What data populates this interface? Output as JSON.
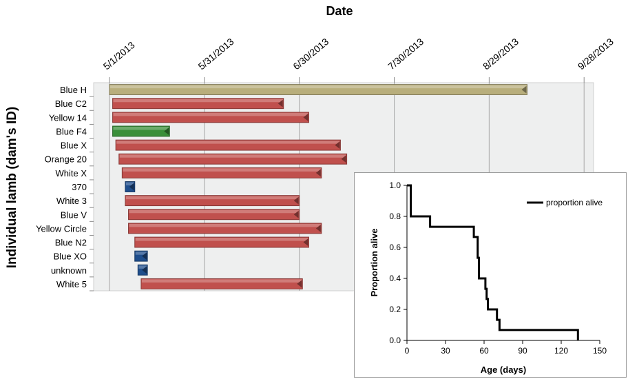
{
  "chart_data": [
    {
      "type": "gantt",
      "title": "Date",
      "ylabel": "Individual lamb  (dam's ID)",
      "x_ticks": [
        "5/1/2013",
        "5/31/2013",
        "6/30/2013",
        "7/30/2013",
        "8/29/2013",
        "9/28/2013"
      ],
      "x_range": [
        "2013-04-26",
        "2013-10-01"
      ],
      "grid": true,
      "rows": [
        {
          "label": "Blue H",
          "start": "2013-05-01",
          "end": "2013-09-10",
          "color": "#b8ae7c"
        },
        {
          "label": "Blue C2",
          "start": "2013-05-02",
          "end": "2013-06-25",
          "color": "#c0504d"
        },
        {
          "label": "Yellow 14",
          "start": "2013-05-02",
          "end": "2013-07-03",
          "color": "#c0504d"
        },
        {
          "label": "Blue F4",
          "start": "2013-05-02",
          "end": "2013-05-20",
          "color": "#3a8f3a"
        },
        {
          "label": "Blue X",
          "start": "2013-05-03",
          "end": "2013-07-13",
          "color": "#c0504d"
        },
        {
          "label": "Orange 20",
          "start": "2013-05-04",
          "end": "2013-07-15",
          "color": "#c0504d"
        },
        {
          "label": "White X",
          "start": "2013-05-05",
          "end": "2013-07-07",
          "color": "#c0504d"
        },
        {
          "label": "370",
          "start": "2013-05-06",
          "end": "2013-05-09",
          "color": "#1f4e8c"
        },
        {
          "label": "White 3",
          "start": "2013-05-06",
          "end": "2013-06-30",
          "color": "#c0504d"
        },
        {
          "label": "Blue V",
          "start": "2013-05-07",
          "end": "2013-06-30",
          "color": "#c0504d"
        },
        {
          "label": "Yellow Circle",
          "start": "2013-05-07",
          "end": "2013-07-07",
          "color": "#c0504d"
        },
        {
          "label": "Blue N2",
          "start": "2013-05-09",
          "end": "2013-07-03",
          "color": "#c0504d"
        },
        {
          "label": "Blue XO",
          "start": "2013-05-09",
          "end": "2013-05-13",
          "color": "#1f4e8c"
        },
        {
          "label": "unknown",
          "start": "2013-05-10",
          "end": "2013-05-13",
          "color": "#1f4e8c"
        },
        {
          "label": "White 5",
          "start": "2013-05-11",
          "end": "2013-07-01",
          "color": "#c0504d"
        }
      ]
    },
    {
      "type": "line",
      "step": true,
      "xlabel": "Age (days)",
      "ylabel": "Proportion alive",
      "xlim": [
        0,
        150
      ],
      "ylim": [
        0,
        1
      ],
      "x_ticks": [
        "0",
        "30",
        "60",
        "90",
        "120",
        "150"
      ],
      "y_ticks": [
        "0.0",
        "0.2",
        "0.4",
        "0.6",
        "0.8",
        "1.0"
      ],
      "legend_position": "top-right",
      "series": [
        {
          "name": "proportion alive",
          "color": "#000000",
          "x": [
            0,
            3,
            3,
            18,
            18,
            52,
            52,
            55,
            55,
            56,
            56,
            61,
            61,
            62,
            62,
            63,
            63,
            70,
            70,
            72,
            72,
            133,
            133
          ],
          "y": [
            1.0,
            1.0,
            0.8,
            0.8,
            0.733,
            0.733,
            0.667,
            0.667,
            0.533,
            0.533,
            0.4,
            0.4,
            0.333,
            0.333,
            0.267,
            0.267,
            0.2,
            0.2,
            0.133,
            0.133,
            0.067,
            0.067,
            0.0
          ]
        }
      ]
    }
  ]
}
